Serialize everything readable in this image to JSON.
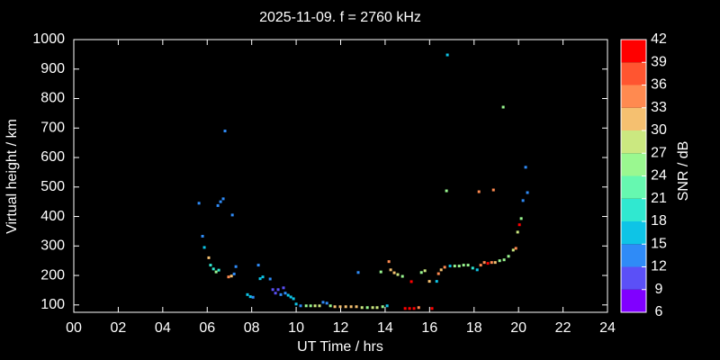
{
  "chart_data": {
    "type": "scatter",
    "title": "2025-11-09. f = 2760 kHz",
    "xlabel": "UT Time / hrs",
    "ylabel": "Virtual height / km",
    "xlim": [
      0,
      24
    ],
    "xticks": [
      {
        "value": 0,
        "label": "00"
      },
      {
        "value": 2,
        "label": "02"
      },
      {
        "value": 4,
        "label": "04"
      },
      {
        "value": 6,
        "label": "06"
      },
      {
        "value": 8,
        "label": "08"
      },
      10,
      12,
      14,
      16,
      18,
      20,
      22,
      24
    ],
    "ylim": [
      75,
      1000
    ],
    "yticks": [
      100,
      200,
      300,
      400,
      500,
      600,
      700,
      800,
      900,
      1000
    ],
    "x": [
      5.63,
      5.79,
      5.87,
      6.07,
      6.15,
      6.28,
      6.4,
      6.52,
      6.48,
      6.6,
      6.72,
      6.8,
      7.13,
      6.96,
      7.09,
      7.21,
      7.29,
      7.81,
      7.94,
      8.06,
      8.3,
      8.38,
      8.5,
      8.83,
      8.95,
      9.07,
      9.19,
      9.31,
      9.43,
      9.51,
      9.64,
      9.76,
      9.88,
      10.0,
      10.2,
      10.45,
      10.65,
      10.85,
      11.05,
      11.21,
      11.38,
      11.54,
      11.74,
      11.98,
      12.23,
      12.47,
      12.71,
      12.96,
      13.2,
      13.44,
      13.64,
      13.89,
      14.09,
      12.79,
      13.81,
      14.17,
      14.25,
      14.41,
      14.57,
      14.78,
      14.9,
      15.1,
      15.3,
      15.51,
      15.18,
      15.63,
      15.79,
      15.99,
      16.11,
      16.32,
      16.4,
      16.52,
      16.68,
      16.76,
      16.8,
      16.92,
      17.13,
      17.33,
      17.53,
      17.73,
      17.94,
      18.14,
      18.3,
      18.46,
      18.62,
      18.79,
      18.95,
      19.15,
      19.35,
      19.55,
      19.76,
      19.88,
      19.96,
      20.04,
      20.12,
      20.2,
      20.32,
      20.4,
      18.22,
      18.87,
      19.31
    ],
    "values": [
      445,
      333,
      295,
      260,
      235,
      222,
      212,
      218,
      437,
      450,
      460,
      690,
      405,
      195,
      198,
      205,
      230,
      135,
      128,
      126,
      235,
      189,
      195,
      188,
      152,
      140,
      152,
      135,
      158,
      140,
      133,
      127,
      121,
      103,
      97,
      97,
      97,
      97,
      97,
      109,
      106,
      97,
      94,
      94,
      94,
      94,
      94,
      91,
      91,
      91,
      91,
      94,
      97,
      210,
      212,
      247,
      219,
      209,
      203,
      197,
      88,
      88,
      88,
      91,
      179,
      210,
      216,
      180,
      88,
      180,
      206,
      219,
      228,
      487,
      948,
      232,
      232,
      232,
      235,
      235,
      225,
      219,
      235,
      244,
      241,
      244,
      244,
      250,
      253,
      265,
      286,
      292,
      347,
      372,
      393,
      454,
      567,
      481,
      484,
      490,
      771
    ],
    "snr": [
      13,
      13,
      17,
      31,
      20,
      20,
      25,
      20,
      13,
      13,
      13,
      13,
      13,
      34,
      31,
      13,
      13,
      17,
      17,
      13,
      13,
      17,
      17,
      13,
      10,
      10,
      10,
      13,
      10,
      13,
      17,
      17,
      17,
      17,
      13,
      25,
      25,
      28,
      28,
      13,
      13,
      25,
      31,
      31,
      31,
      31,
      31,
      28,
      25,
      28,
      28,
      25,
      17,
      13,
      25,
      34,
      31,
      31,
      28,
      25,
      40,
      40,
      40,
      34,
      40,
      25,
      28,
      31,
      40,
      17,
      34,
      31,
      34,
      25,
      17,
      17,
      25,
      25,
      25,
      25,
      20,
      17,
      34,
      34,
      40,
      34,
      31,
      25,
      25,
      25,
      28,
      34,
      28,
      40,
      25,
      13,
      13,
      13,
      34,
      34,
      25
    ],
    "colorbar": {
      "label": "SNR / dB",
      "lim": [
        6,
        42
      ],
      "ticks": [
        6,
        9,
        12,
        15,
        18,
        21,
        24,
        27,
        30,
        33,
        36,
        39,
        42
      ],
      "colors": [
        "#8000ff",
        "#5b50f7",
        "#2f8bf7",
        "#0ec4e6",
        "#30e8d0",
        "#66f8b0",
        "#9af890",
        "#cbe880",
        "#f5c070",
        "#ff8a50",
        "#ff5530",
        "#ff0000"
      ]
    }
  }
}
